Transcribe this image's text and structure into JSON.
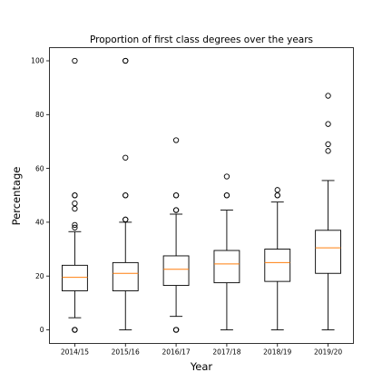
{
  "chart_data": {
    "type": "box",
    "title": "Proportion of first class degrees over the years",
    "xlabel": "Year",
    "ylabel": "Percentage",
    "categories": [
      "2014/15",
      "2015/16",
      "2016/17",
      "2017/18",
      "2018/19",
      "2019/20"
    ],
    "ylim": [
      -5,
      105
    ],
    "yticks": [
      0,
      20,
      40,
      60,
      80,
      100
    ],
    "grid": false,
    "box_color": "#000000",
    "median_color": "#ff7f0e",
    "boxes": [
      {
        "label": "2014/15",
        "q1": 14.5,
        "median": 19.5,
        "q3": 24.0,
        "whisker_low": 4.5,
        "whisker_high": 36.5,
        "fliers": [
          0,
          0,
          0,
          38,
          39,
          45,
          47,
          50,
          50,
          100
        ]
      },
      {
        "label": "2015/16",
        "q1": 14.5,
        "median": 21.0,
        "q3": 25.0,
        "whisker_low": 0,
        "whisker_high": 40.0,
        "fliers": [
          41,
          41,
          50,
          50,
          64,
          100,
          100
        ]
      },
      {
        "label": "2016/17",
        "q1": 16.5,
        "median": 22.5,
        "q3": 27.5,
        "whisker_low": 5.0,
        "whisker_high": 43.0,
        "fliers": [
          0,
          0,
          0,
          44.5,
          44.5,
          50,
          50,
          70.5
        ]
      },
      {
        "label": "2017/18",
        "q1": 17.5,
        "median": 24.5,
        "q3": 29.5,
        "whisker_low": 0,
        "whisker_high": 44.5,
        "fliers": [
          50,
          50,
          57
        ]
      },
      {
        "label": "2018/19",
        "q1": 18.0,
        "median": 25.0,
        "q3": 30.0,
        "whisker_low": 0,
        "whisker_high": 47.5,
        "fliers": [
          50,
          50,
          52
        ]
      },
      {
        "label": "2019/20",
        "q1": 21.0,
        "median": 30.5,
        "q3": 37.0,
        "whisker_low": 0,
        "whisker_high": 55.5,
        "fliers": [
          66.5,
          69,
          76.5,
          87
        ]
      }
    ]
  }
}
